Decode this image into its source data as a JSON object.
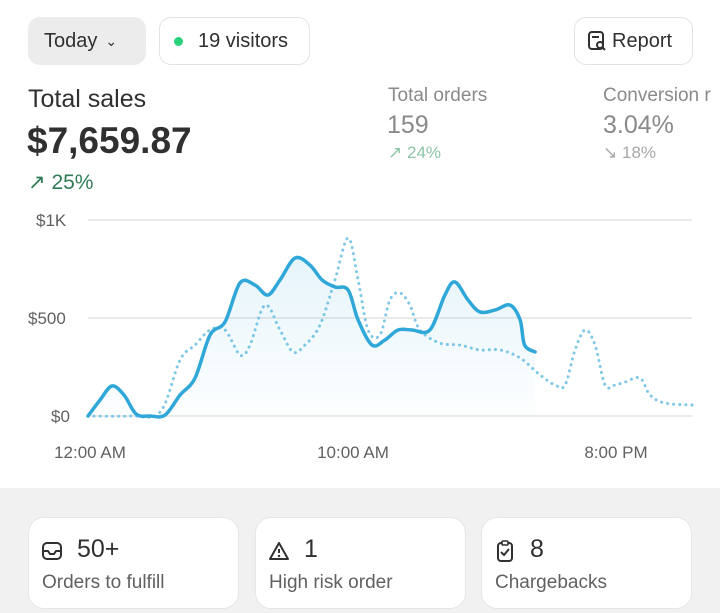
{
  "header": {
    "date_filter": "Today",
    "visitors": "19 visitors",
    "report": "Report",
    "live_color": "#29d17b"
  },
  "metrics": {
    "total_sales": {
      "label": "Total sales",
      "value": "$7,659.87",
      "delta": "25%",
      "direction": "up"
    },
    "total_orders": {
      "label": "Total orders",
      "value": "159",
      "delta": "24%",
      "direction": "up"
    },
    "conversion": {
      "label": "Conversion r",
      "value": "3.04%",
      "delta": "18%",
      "direction": "down"
    }
  },
  "chart_data": {
    "type": "line",
    "y_ticks": [
      "$1K",
      "$500",
      "$0"
    ],
    "x_ticks": [
      "12:00 AM",
      "10:00 AM",
      "8:00 PM"
    ],
    "ylim": [
      0,
      1000
    ],
    "xlim_hours": [
      0,
      23
    ],
    "grid": true,
    "series": [
      {
        "style": "solid",
        "color": "#2fa7d8",
        "points": [
          [
            0,
            0
          ],
          [
            0.46,
            82
          ],
          [
            0.91,
            153
          ],
          [
            1.37,
            107
          ],
          [
            1.83,
            10
          ],
          [
            2.36,
            0
          ],
          [
            2.93,
            5
          ],
          [
            3.5,
            107
          ],
          [
            4.07,
            194
          ],
          [
            4.64,
            413
          ],
          [
            5.21,
            480
          ],
          [
            5.78,
            679
          ],
          [
            6.35,
            668
          ],
          [
            6.84,
            617
          ],
          [
            7.3,
            694
          ],
          [
            7.87,
            806
          ],
          [
            8.44,
            770
          ],
          [
            8.9,
            694
          ],
          [
            9.39,
            658
          ],
          [
            9.89,
            643
          ],
          [
            10.27,
            490
          ],
          [
            10.8,
            362
          ],
          [
            11.29,
            388
          ],
          [
            11.79,
            439
          ],
          [
            12.32,
            439
          ],
          [
            13.0,
            439
          ],
          [
            13.57,
            617
          ],
          [
            13.95,
            684
          ],
          [
            14.45,
            592
          ],
          [
            14.9,
            531
          ],
          [
            15.48,
            541
          ],
          [
            16.05,
            566
          ],
          [
            16.43,
            490
          ],
          [
            16.6,
            362
          ],
          [
            17.0,
            327
          ]
        ]
      },
      {
        "style": "dotted",
        "color": "#7fc8e6",
        "points": [
          [
            0,
            0
          ],
          [
            1.6,
            0
          ],
          [
            2.74,
            20
          ],
          [
            3.5,
            286
          ],
          [
            4.07,
            362
          ],
          [
            4.64,
            439
          ],
          [
            5.21,
            439
          ],
          [
            5.78,
            311
          ],
          [
            6.16,
            362
          ],
          [
            6.73,
            566
          ],
          [
            7.3,
            439
          ],
          [
            7.79,
            327
          ],
          [
            8.25,
            362
          ],
          [
            8.82,
            464
          ],
          [
            9.39,
            694
          ],
          [
            9.89,
            908
          ],
          [
            10.27,
            694
          ],
          [
            10.65,
            439
          ],
          [
            11.1,
            413
          ],
          [
            11.48,
            592
          ],
          [
            11.86,
            628
          ],
          [
            12.24,
            566
          ],
          [
            12.62,
            439
          ],
          [
            13.38,
            372
          ],
          [
            14.14,
            362
          ],
          [
            14.9,
            337
          ],
          [
            15.67,
            337
          ],
          [
            16.43,
            296
          ],
          [
            17.19,
            209
          ],
          [
            17.76,
            158
          ],
          [
            18.14,
            158
          ],
          [
            18.52,
            337
          ],
          [
            18.9,
            439
          ],
          [
            19.28,
            362
          ],
          [
            19.66,
            158
          ],
          [
            20.04,
            158
          ],
          [
            20.42,
            173
          ],
          [
            20.99,
            194
          ],
          [
            21.37,
            107
          ],
          [
            21.94,
            66
          ],
          [
            22.97,
            56
          ]
        ]
      }
    ]
  },
  "cards": [
    {
      "icon": "inbox-icon",
      "value": "50+",
      "label": "Orders to fulfill"
    },
    {
      "icon": "alert-triangle-icon",
      "value": "1",
      "label": "High risk order"
    },
    {
      "icon": "clipboard-check-icon",
      "value": "8",
      "label": "Chargebacks"
    }
  ]
}
